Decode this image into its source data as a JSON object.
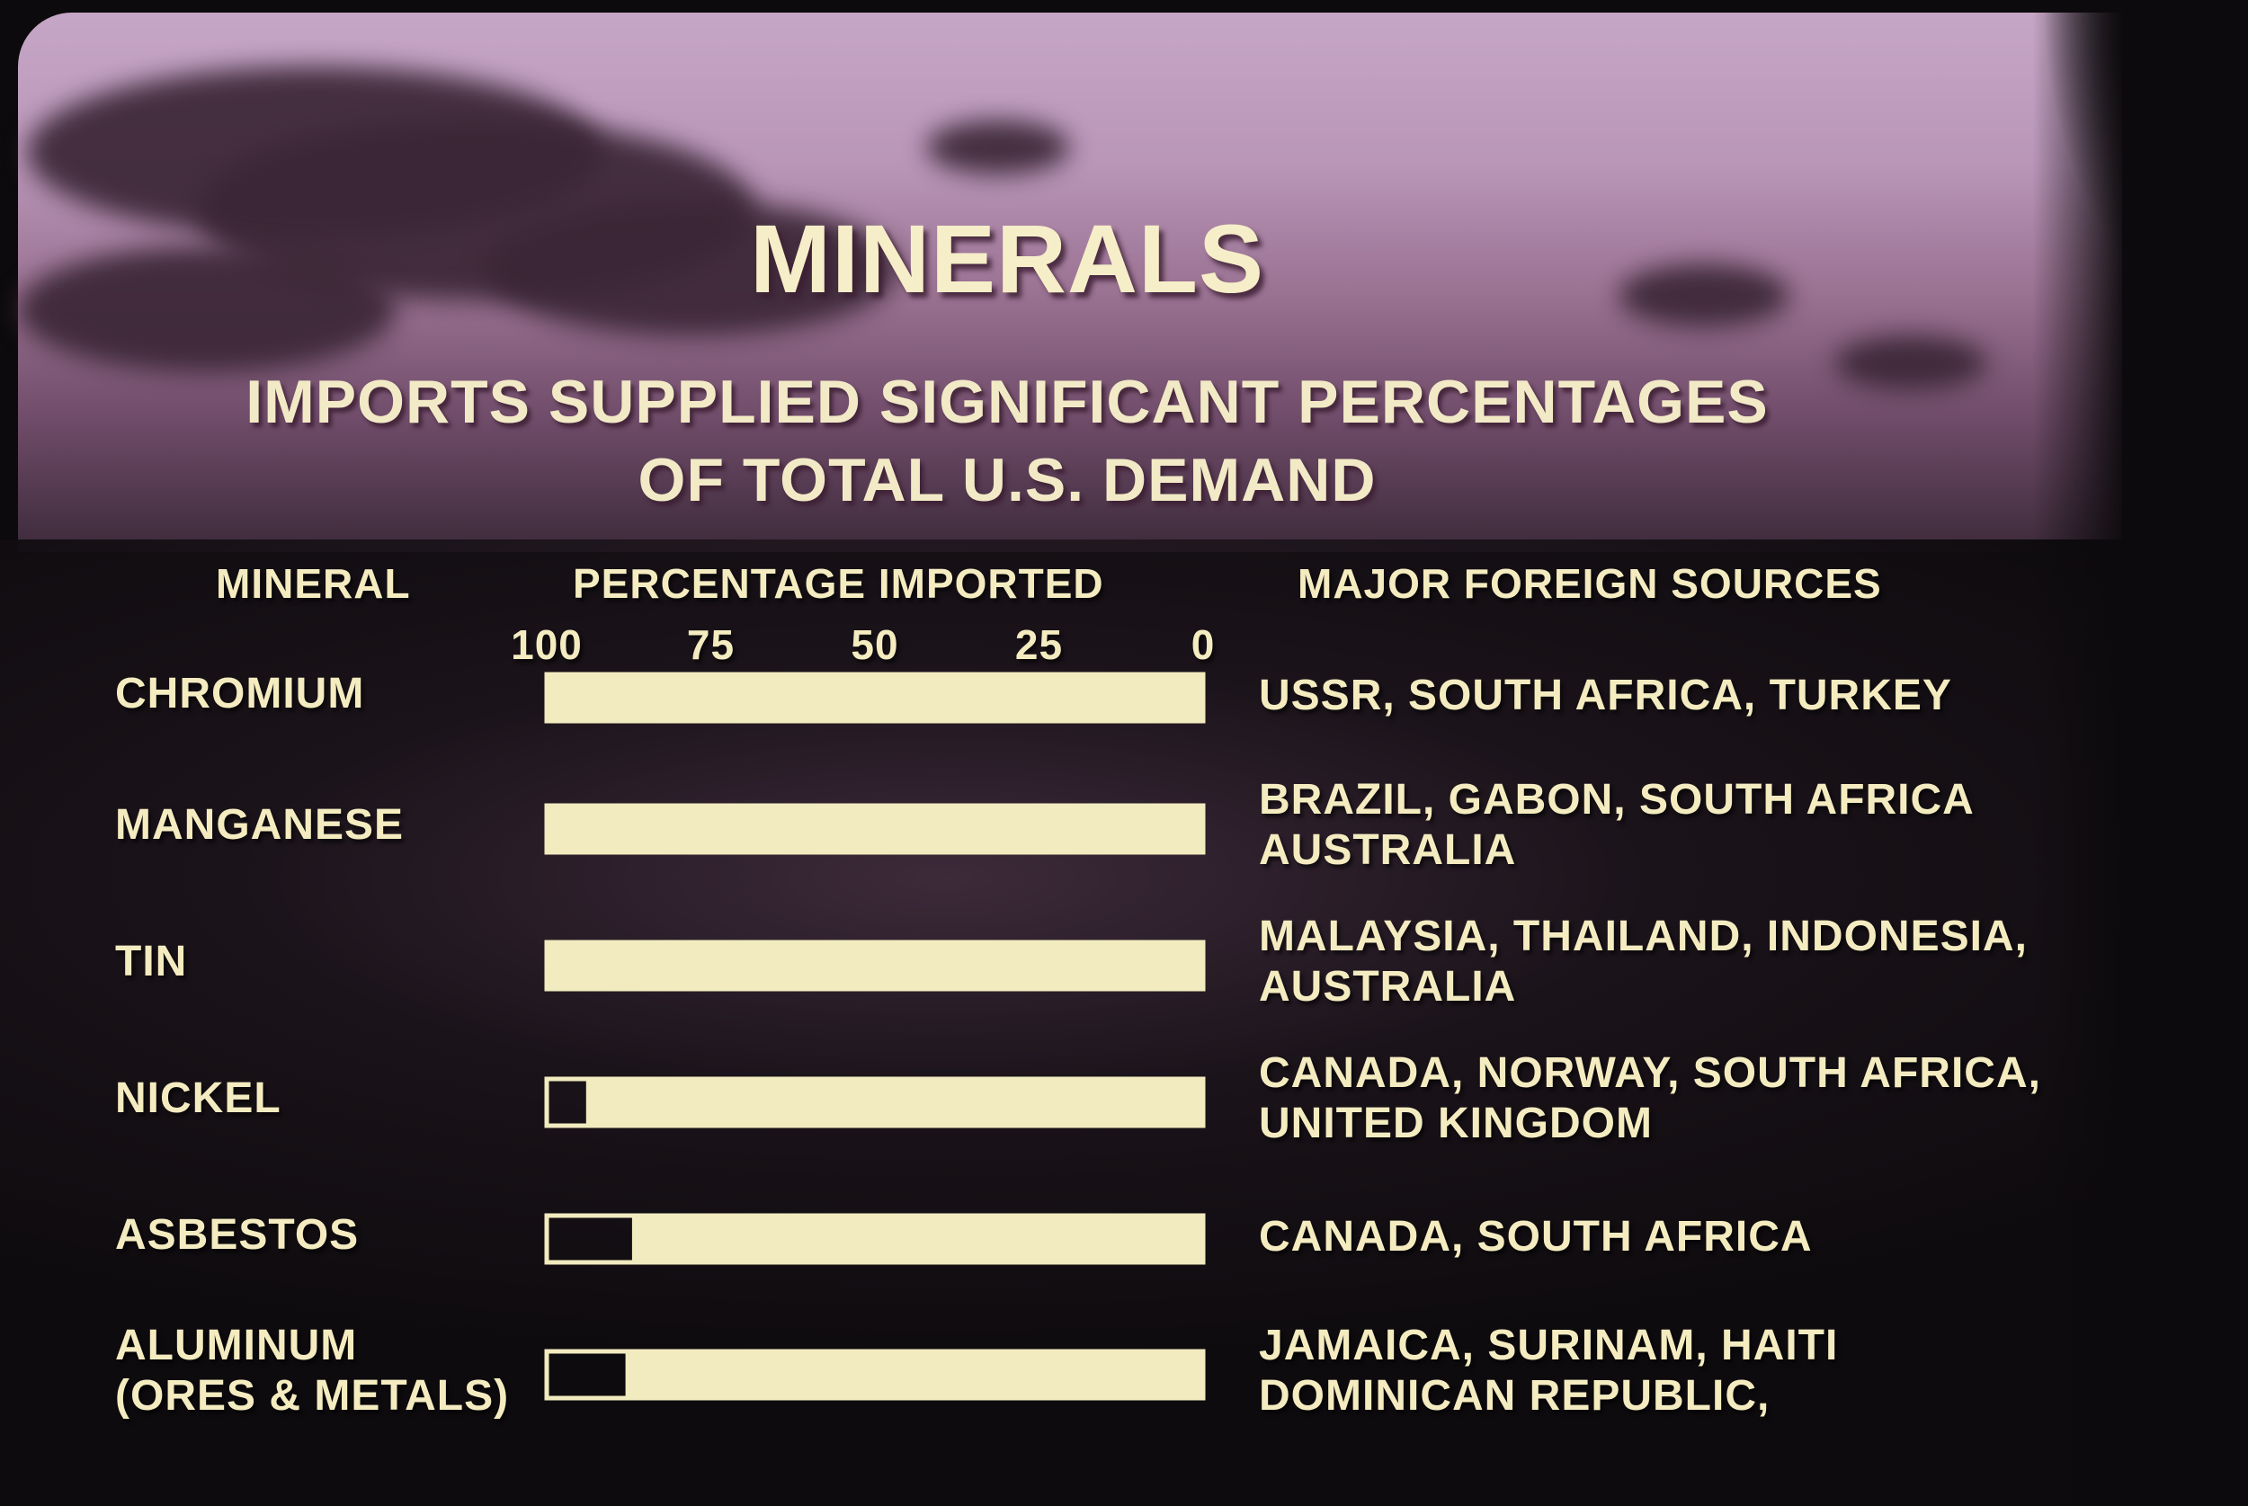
{
  "chart_data": {
    "type": "bar",
    "orientation": "horizontal",
    "x_direction": "reversed",
    "title": "MINERALS",
    "subtitle": [
      "IMPORTS SUPPLIED SIGNIFICANT PERCENTAGES",
      "OF TOTAL U.S. DEMAND"
    ],
    "headers": {
      "mineral": "MINERAL",
      "percentage": "PERCENTAGE IMPORTED",
      "sources": "MAJOR FOREIGN SOURCES"
    },
    "xlim": [
      0,
      100
    ],
    "ticks": [
      "100",
      "75",
      "50",
      "25",
      "0"
    ],
    "categories": [
      {
        "name": [
          "CHROMIUM"
        ],
        "value": 100,
        "sources": [
          "USSR, SOUTH AFRICA, TURKEY"
        ]
      },
      {
        "name": [
          "MANGANESE"
        ],
        "value": 100,
        "sources": [
          "BRAZIL, GABON, SOUTH AFRICA",
          "AUSTRALIA"
        ]
      },
      {
        "name": [
          "TIN"
        ],
        "value": 100,
        "sources": [
          "MALAYSIA, THAILAND, INDONESIA,",
          "AUSTRALIA"
        ]
      },
      {
        "name": [
          "NICKEL"
        ],
        "value": 94,
        "sources": [
          "CANADA, NORWAY, SOUTH AFRICA,",
          "UNITED KINGDOM"
        ]
      },
      {
        "name": [
          "ASBESTOS"
        ],
        "value": 87,
        "sources": [
          "CANADA, SOUTH AFRICA"
        ]
      },
      {
        "name": [
          "ALUMINUM",
          "(ORES & METALS)"
        ],
        "value": 88,
        "sources": [
          "JAMAICA, SURINAM, HAITI",
          "DOMINICAN REPUBLIC,"
        ]
      }
    ],
    "colors": {
      "bar_fill": "#f1ebbf",
      "bar_outline": "#f1ebbf",
      "text": "#f4ecc0"
    }
  }
}
